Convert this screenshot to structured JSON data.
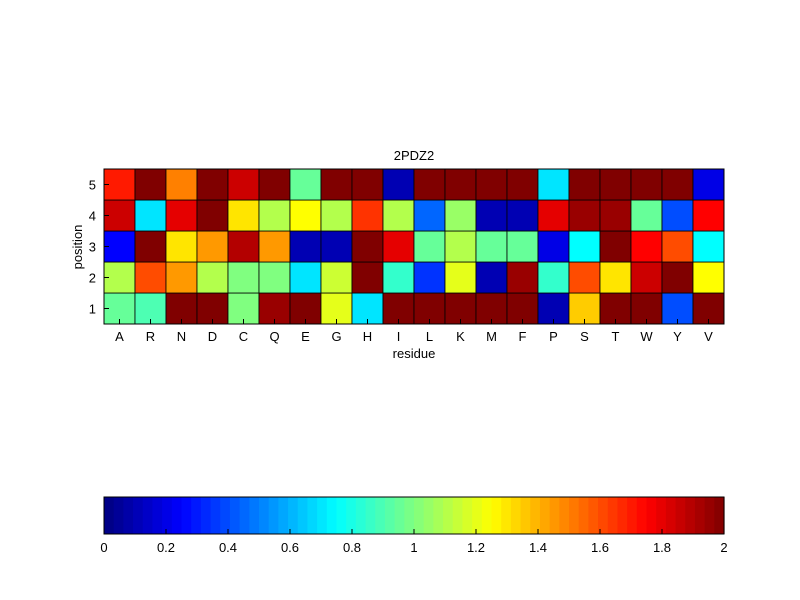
{
  "chart_data": {
    "type": "heatmap",
    "title": "2PDZ2",
    "xlabel": "residue",
    "ylabel": "position",
    "x_categories": [
      "A",
      "R",
      "N",
      "D",
      "C",
      "Q",
      "E",
      "G",
      "H",
      "I",
      "L",
      "K",
      "M",
      "F",
      "P",
      "S",
      "T",
      "W",
      "Y",
      "V"
    ],
    "y_categories": [
      "1",
      "2",
      "3",
      "4",
      "5"
    ],
    "values_by_position": {
      "5": [
        1.7,
        2.0,
        1.5,
        2.0,
        1.85,
        2.0,
        0.95,
        2.0,
        2.0,
        0.1,
        2.0,
        2.0,
        2.0,
        2.0,
        0.7,
        2.0,
        2.0,
        2.0,
        2.0,
        0.2
      ],
      "4": [
        1.85,
        0.7,
        1.8,
        2.0,
        1.3,
        1.1,
        1.25,
        1.1,
        1.65,
        1.1,
        0.45,
        1.05,
        0.1,
        0.1,
        1.8,
        1.95,
        1.95,
        0.95,
        0.4,
        1.75
      ],
      "3": [
        0.25,
        2.0,
        1.3,
        1.45,
        1.9,
        1.45,
        0.1,
        0.1,
        2.0,
        1.8,
        0.95,
        1.1,
        0.95,
        0.95,
        0.2,
        0.75,
        2.0,
        1.75,
        1.6,
        0.75
      ],
      "2": [
        1.1,
        1.6,
        1.45,
        1.1,
        1.0,
        1.0,
        0.7,
        1.15,
        2.0,
        0.85,
        0.35,
        1.2,
        0.1,
        1.95,
        0.85,
        1.6,
        1.3,
        1.85,
        2.0,
        1.25
      ],
      "1": [
        0.95,
        0.9,
        2.0,
        2.0,
        1.0,
        1.95,
        2.0,
        1.2,
        0.7,
        2.0,
        2.0,
        2.0,
        2.0,
        2.0,
        0.1,
        1.35,
        2.0,
        2.0,
        0.4,
        2.0
      ]
    },
    "color_scale": {
      "colormap": "jet",
      "range": [
        0,
        2
      ],
      "ticks": [
        "0",
        "0.2",
        "0.4",
        "0.6",
        "0.8",
        "1",
        "1.2",
        "1.4",
        "1.6",
        "1.8",
        "2"
      ]
    },
    "grid": false,
    "colorbar_placement": "bottom"
  }
}
